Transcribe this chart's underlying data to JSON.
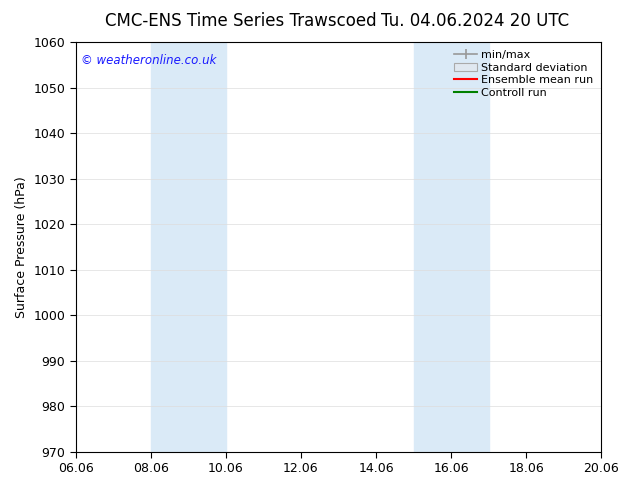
{
  "title": "CMC-ENS Time Series Trawscoed",
  "title2": "Tu. 04.06.2024 20 UTC",
  "ylabel": "Surface Pressure (hPa)",
  "ylim": [
    970,
    1060
  ],
  "yticks": [
    970,
    980,
    990,
    1000,
    1010,
    1020,
    1030,
    1040,
    1050,
    1060
  ],
  "xtick_labels": [
    "06.06",
    "08.06",
    "10.06",
    "12.06",
    "14.06",
    "16.06",
    "18.06",
    "20.06"
  ],
  "xtick_positions": [
    0,
    2,
    4,
    6,
    8,
    10,
    12,
    14
  ],
  "xlim": [
    0,
    14
  ],
  "shaded_bands": [
    {
      "x_start": 2,
      "x_end": 4
    },
    {
      "x_start": 9,
      "x_end": 11
    }
  ],
  "band_color": "#daeaf7",
  "background_color": "#ffffff",
  "watermark": "© weatheronline.co.uk",
  "watermark_color": "#1a1aff",
  "legend_items": [
    {
      "label": "min/max",
      "color": "#999999",
      "type": "line_caps"
    },
    {
      "label": "Standard deviation",
      "color": "#cccccc",
      "type": "fill"
    },
    {
      "label": "Ensemble mean run",
      "color": "#ff0000",
      "type": "line"
    },
    {
      "label": "Controll run",
      "color": "#008000",
      "type": "line"
    }
  ],
  "grid_color": "#dddddd",
  "title_fontsize": 12,
  "tick_fontsize": 9,
  "ylabel_fontsize": 9,
  "legend_fontsize": 8
}
